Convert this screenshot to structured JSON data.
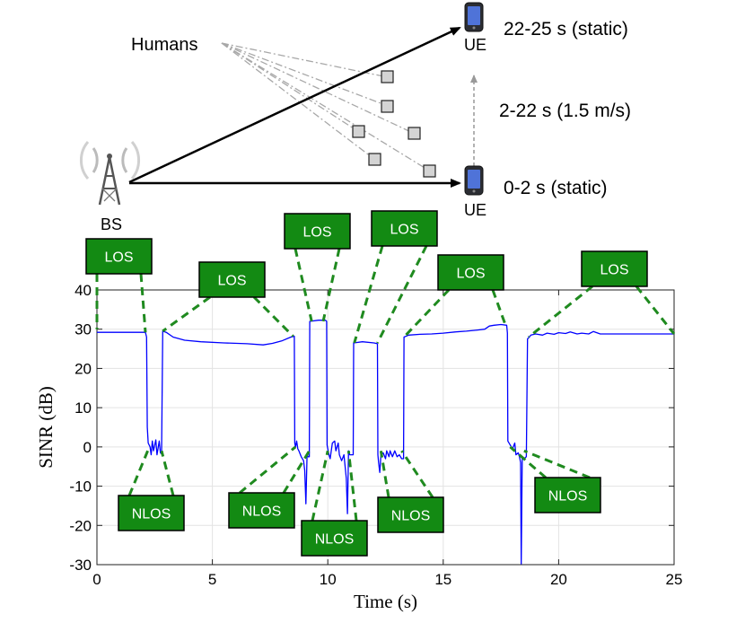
{
  "scene": {
    "humans_label": "Humans",
    "bs_label": "BS",
    "ue_label": "UE",
    "phase_end": "22-25 s (static)",
    "phase_moving": "2-22 s (1.5 m/s)",
    "phase_start": "0-2 s (static)",
    "icons": [
      "antenna-tower-icon",
      "phone-icon",
      "human-marker-icon"
    ],
    "colors": {
      "line": "#0000ff",
      "tag": "#138a13",
      "leader": "#1f8a1f"
    }
  },
  "chart_data": {
    "type": "line",
    "title": "",
    "xlabel": "Time (s)",
    "ylabel": "SINR (dB)",
    "xlim": [
      0,
      25
    ],
    "ylim": [
      -30,
      40
    ],
    "xticks": [
      0,
      5,
      10,
      15,
      20,
      25
    ],
    "yticks": [
      -30,
      -20,
      -10,
      0,
      10,
      20,
      30,
      40
    ],
    "grid": true,
    "series": [
      {
        "color": "#0000ff",
        "points": [
          [
            0,
            29.2
          ],
          [
            2.1,
            29.2
          ],
          [
            2.15,
            28
          ],
          [
            2.18,
            5
          ],
          [
            2.22,
            1
          ],
          [
            2.3,
            0
          ],
          [
            2.35,
            -2
          ],
          [
            2.4,
            1.5
          ],
          [
            2.45,
            -1
          ],
          [
            2.55,
            1.8
          ],
          [
            2.6,
            -2
          ],
          [
            2.7,
            1.5
          ],
          [
            2.75,
            -1.5
          ],
          [
            2.8,
            -1.8
          ],
          [
            2.85,
            29.5
          ],
          [
            3.0,
            29.2
          ],
          [
            3.3,
            28.0
          ],
          [
            3.8,
            27.2
          ],
          [
            4.5,
            26.8
          ],
          [
            5.5,
            26.5
          ],
          [
            6.5,
            26.3
          ],
          [
            7.2,
            26.0
          ],
          [
            7.6,
            26.4
          ],
          [
            8.0,
            27.0
          ],
          [
            8.4,
            28.0
          ],
          [
            8.55,
            28.2
          ],
          [
            8.57,
            1
          ],
          [
            8.6,
            0
          ],
          [
            8.65,
            1.5
          ],
          [
            8.7,
            -0.5
          ],
          [
            8.75,
            -1
          ],
          [
            8.85,
            -2.5
          ],
          [
            8.95,
            -3.5
          ],
          [
            9.0,
            -6
          ],
          [
            9.05,
            -14.5
          ],
          [
            9.1,
            -2
          ],
          [
            9.15,
            -2.5
          ],
          [
            9.2,
            -2.5
          ],
          [
            9.22,
            32
          ],
          [
            9.6,
            32.3
          ],
          [
            9.9,
            32.3
          ],
          [
            9.95,
            32
          ],
          [
            9.97,
            0.5
          ],
          [
            10.0,
            -0.5
          ],
          [
            10.05,
            -2
          ],
          [
            10.1,
            -3
          ],
          [
            10.2,
            1
          ],
          [
            10.3,
            1.5
          ],
          [
            10.35,
            -1
          ],
          [
            10.45,
            1
          ],
          [
            10.5,
            -2
          ],
          [
            10.6,
            -3.5
          ],
          [
            10.7,
            -2
          ],
          [
            10.75,
            -5
          ],
          [
            10.8,
            -8
          ],
          [
            10.85,
            -17
          ],
          [
            10.9,
            -1
          ],
          [
            10.95,
            -2
          ],
          [
            11.1,
            -2
          ],
          [
            11.12,
            26.5
          ],
          [
            11.5,
            26.8
          ],
          [
            12.0,
            26.5
          ],
          [
            12.15,
            26.3
          ],
          [
            12.17,
            -2
          ],
          [
            12.2,
            -4
          ],
          [
            12.25,
            -6.5
          ],
          [
            12.3,
            -2
          ],
          [
            12.4,
            -1.5
          ],
          [
            12.5,
            -3
          ],
          [
            12.55,
            -1
          ],
          [
            12.65,
            -2.5
          ],
          [
            12.7,
            -1
          ],
          [
            12.8,
            -2.5
          ],
          [
            12.9,
            -1
          ],
          [
            13.0,
            -2.5
          ],
          [
            13.1,
            -2
          ],
          [
            13.2,
            -3
          ],
          [
            13.28,
            -3
          ],
          [
            13.3,
            28.0
          ],
          [
            13.5,
            28.5
          ],
          [
            14.0,
            28.7
          ],
          [
            14.5,
            28.8
          ],
          [
            15.0,
            29.0
          ],
          [
            15.5,
            29.3
          ],
          [
            16.0,
            29.5
          ],
          [
            16.5,
            29.8
          ],
          [
            16.8,
            30.0
          ],
          [
            17.0,
            30.8
          ],
          [
            17.2,
            31.0
          ],
          [
            17.5,
            31.2
          ],
          [
            17.75,
            31.0
          ],
          [
            17.78,
            29
          ],
          [
            17.8,
            1.5
          ],
          [
            17.9,
            0.5
          ],
          [
            18.0,
            -0.5
          ],
          [
            18.1,
            1
          ],
          [
            18.15,
            -2
          ],
          [
            18.25,
            -1.5
          ],
          [
            18.3,
            -2.5
          ],
          [
            18.35,
            -4
          ],
          [
            18.38,
            -29.8
          ],
          [
            18.42,
            -3
          ],
          [
            18.5,
            -3
          ],
          [
            18.6,
            -2.5
          ],
          [
            18.65,
            27.5
          ],
          [
            18.8,
            28.5
          ],
          [
            19.0,
            28.8
          ],
          [
            19.3,
            28.5
          ],
          [
            19.5,
            29.0
          ],
          [
            19.8,
            28.7
          ],
          [
            20.0,
            29.1
          ],
          [
            20.3,
            28.9
          ],
          [
            20.5,
            29.3
          ],
          [
            20.8,
            28.8
          ],
          [
            21.0,
            29.0
          ],
          [
            21.3,
            28.8
          ],
          [
            21.5,
            29.4
          ],
          [
            21.8,
            28.8
          ],
          [
            22.0,
            28.8
          ],
          [
            25,
            28.8
          ]
        ]
      }
    ],
    "annotations": [
      {
        "label": "LOS",
        "pos": "above",
        "targets": [
          [
            0,
            30
          ],
          [
            2.1,
            29.2
          ]
        ]
      },
      {
        "label": "LOS",
        "pos": "above",
        "targets": [
          [
            2.85,
            29.5
          ],
          [
            8.5,
            28.2
          ]
        ]
      },
      {
        "label": "LOS",
        "pos": "above",
        "targets": [
          [
            9.3,
            32
          ],
          [
            9.8,
            32
          ]
        ]
      },
      {
        "label": "LOS",
        "pos": "above",
        "targets": [
          [
            11.15,
            26.5
          ],
          [
            12.15,
            26.5
          ]
        ]
      },
      {
        "label": "LOS",
        "pos": "above",
        "targets": [
          [
            13.3,
            28
          ],
          [
            17.7,
            31
          ]
        ]
      },
      {
        "label": "LOS",
        "pos": "above",
        "targets": [
          [
            18.7,
            28
          ],
          [
            25,
            28.8
          ]
        ]
      },
      {
        "label": "NLOS",
        "pos": "below",
        "targets": [
          [
            2.2,
            -1
          ],
          [
            2.8,
            -1
          ]
        ]
      },
      {
        "label": "NLOS",
        "pos": "below",
        "targets": [
          [
            8.6,
            0
          ],
          [
            9.2,
            -1
          ]
        ]
      },
      {
        "label": "NLOS",
        "pos": "below",
        "targets": [
          [
            10.0,
            -1
          ],
          [
            10.9,
            -1
          ]
        ]
      },
      {
        "label": "NLOS",
        "pos": "below",
        "targets": [
          [
            12.3,
            -1
          ],
          [
            13.2,
            -1
          ]
        ]
      },
      {
        "label": "NLOS",
        "pos": "below",
        "targets": [
          [
            17.9,
            0
          ],
          [
            18.5,
            -1
          ]
        ]
      }
    ]
  }
}
